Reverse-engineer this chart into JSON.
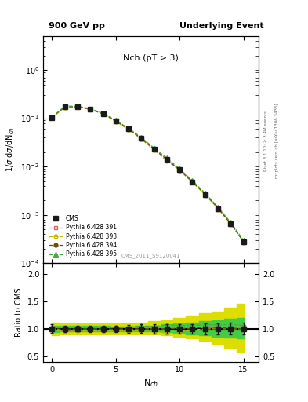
{
  "title_left": "900 GeV pp",
  "title_right": "Underlying Event",
  "plot_label": "Nch (pT > 3)",
  "cms_label": "CMS_2011_S9120041",
  "right_label": "Rivet 3.1.10; ≥ 3.4M events",
  "arxiv_label": "mcplots.cern.ch [arXiv:1306.3436]",
  "ylabel_main": "1/σ dσ/dN_{ch}",
  "ylabel_ratio": "Ratio to CMS",
  "xlabel": "N$_{ch}$",
  "x_data": [
    0,
    1,
    2,
    3,
    4,
    5,
    6,
    7,
    8,
    9,
    10,
    11,
    12,
    13,
    14,
    15
  ],
  "cms_y": [
    0.103,
    0.175,
    0.175,
    0.155,
    0.125,
    0.088,
    0.06,
    0.038,
    0.023,
    0.014,
    0.0085,
    0.0048,
    0.0026,
    0.00135,
    0.00065,
    0.00028
  ],
  "cms_yerr": [
    0.008,
    0.01,
    0.009,
    0.008,
    0.007,
    0.005,
    0.004,
    0.003,
    0.002,
    0.0012,
    0.0007,
    0.0004,
    0.00025,
    0.00014,
    7e-05,
    3e-05
  ],
  "p391_y": [
    0.104,
    0.17,
    0.172,
    0.153,
    0.123,
    0.087,
    0.059,
    0.038,
    0.023,
    0.014,
    0.0086,
    0.0049,
    0.0027,
    0.0014,
    0.00067,
    0.00029
  ],
  "p393_y": [
    0.104,
    0.168,
    0.171,
    0.152,
    0.122,
    0.086,
    0.058,
    0.037,
    0.022,
    0.013,
    0.0083,
    0.0047,
    0.0026,
    0.00135,
    0.00065,
    0.00028
  ],
  "p394_y": [
    0.105,
    0.172,
    0.174,
    0.154,
    0.124,
    0.088,
    0.06,
    0.038,
    0.023,
    0.014,
    0.0086,
    0.0048,
    0.0027,
    0.00138,
    0.00066,
    0.00028
  ],
  "p395_y": [
    0.106,
    0.178,
    0.178,
    0.157,
    0.127,
    0.09,
    0.062,
    0.04,
    0.024,
    0.015,
    0.009,
    0.0051,
    0.0028,
    0.00145,
    0.0007,
    0.0003
  ],
  "band_yellow_lo": [
    0.88,
    0.9,
    0.9,
    0.9,
    0.9,
    0.9,
    0.9,
    0.9,
    0.9,
    0.88,
    0.85,
    0.82,
    0.78,
    0.72,
    0.65,
    0.58
  ],
  "band_yellow_hi": [
    1.12,
    1.1,
    1.1,
    1.1,
    1.1,
    1.1,
    1.1,
    1.12,
    1.14,
    1.16,
    1.2,
    1.24,
    1.28,
    1.32,
    1.38,
    1.45
  ],
  "band_green_lo": [
    0.94,
    0.95,
    0.95,
    0.95,
    0.95,
    0.96,
    0.96,
    0.96,
    0.95,
    0.94,
    0.92,
    0.9,
    0.88,
    0.86,
    0.84,
    0.82
  ],
  "band_green_hi": [
    1.06,
    1.05,
    1.05,
    1.05,
    1.05,
    1.04,
    1.04,
    1.05,
    1.06,
    1.08,
    1.1,
    1.12,
    1.14,
    1.16,
    1.18,
    1.2
  ],
  "ylim_main": [
    0.0001,
    5
  ],
  "ylim_ratio": [
    0.4,
    2.2
  ],
  "color_cms": "#1a1a1a",
  "color_391": "#cc6677",
  "color_393": "#bbbb00",
  "color_394": "#6b4c11",
  "color_395": "#44aa44",
  "color_band_green": "#44cc44",
  "color_band_yellow": "#dddd00",
  "bg_color": "#ffffff"
}
